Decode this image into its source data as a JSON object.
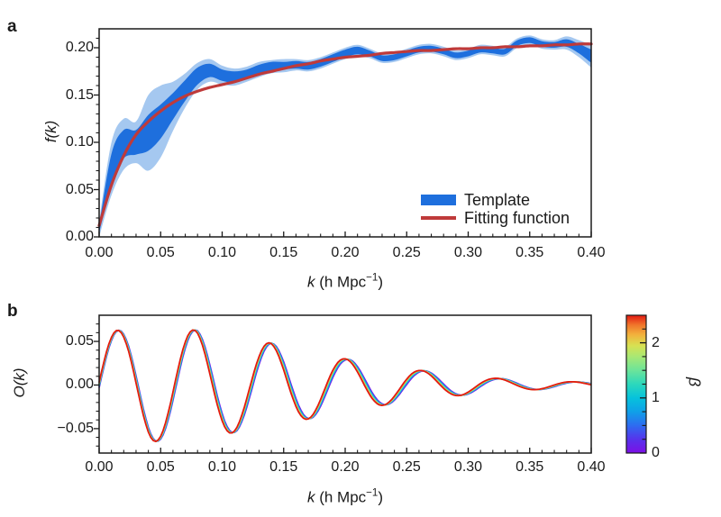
{
  "figure": {
    "panel_a_letter": "a",
    "panel_b_letter": "b",
    "background": "#ffffff",
    "text_color": "#1a1a1a",
    "axis_color": "#1a1a1a"
  },
  "chart_data": [
    {
      "id": "a",
      "type": "area",
      "title": "",
      "xlabel": {
        "var": "k",
        "unit_open": " (h Mpc",
        "exp": "−1",
        "unit_close": ")"
      },
      "ylabel": "f(k)",
      "xlim": [
        0,
        0.4
      ],
      "ylim": [
        0,
        0.22
      ],
      "x_tick_values": [
        0,
        0.05,
        0.1,
        0.15,
        0.2,
        0.25,
        0.3,
        0.35,
        0.4
      ],
      "x_tick_labels": [
        "0.00",
        "0.05",
        "0.10",
        "0.15",
        "0.20",
        "0.25",
        "0.30",
        "0.35",
        "0.40"
      ],
      "x_minor_step": 0.01,
      "y_tick_values": [
        0,
        0.05,
        0.1,
        0.15,
        0.2
      ],
      "y_tick_labels": [
        "0.00",
        "0.05",
        "0.10",
        "0.15",
        "0.20"
      ],
      "y_minor_step": 0.01,
      "legend_position": "lower right",
      "k_values": [
        0.0,
        0.01,
        0.02,
        0.03,
        0.04,
        0.05,
        0.06,
        0.07,
        0.08,
        0.09,
        0.1,
        0.11,
        0.12,
        0.13,
        0.14,
        0.15,
        0.16,
        0.17,
        0.18,
        0.19,
        0.2,
        0.21,
        0.22,
        0.23,
        0.24,
        0.25,
        0.26,
        0.27,
        0.28,
        0.29,
        0.3,
        0.31,
        0.32,
        0.33,
        0.34,
        0.35,
        0.36,
        0.37,
        0.38,
        0.39,
        0.4
      ],
      "series": [
        {
          "name": "Template",
          "style": "band",
          "color_inner": "#1e6fdd",
          "color_outer": "#a5c8f0",
          "center": [
            0.008,
            0.072,
            0.098,
            0.1,
            0.11,
            0.122,
            0.138,
            0.155,
            0.17,
            0.176,
            0.171,
            0.169,
            0.172,
            0.177,
            0.18,
            0.181,
            0.182,
            0.181,
            0.184,
            0.189,
            0.194,
            0.197,
            0.194,
            0.189,
            0.19,
            0.194,
            0.198,
            0.199,
            0.196,
            0.192,
            0.194,
            0.198,
            0.197,
            0.196,
            0.205,
            0.208,
            0.204,
            0.203,
            0.205,
            0.199,
            0.191
          ],
          "inner_halfwidth": [
            0.004,
            0.016,
            0.015,
            0.013,
            0.019,
            0.018,
            0.014,
            0.011,
            0.009,
            0.007,
            0.006,
            0.006,
            0.005,
            0.005,
            0.005,
            0.004,
            0.004,
            0.004,
            0.004,
            0.004,
            0.004,
            0.004,
            0.003,
            0.003,
            0.003,
            0.003,
            0.003,
            0.003,
            0.003,
            0.003,
            0.003,
            0.003,
            0.003,
            0.003,
            0.003,
            0.003,
            0.003,
            0.003,
            0.004,
            0.005,
            0.007
          ],
          "outer_halfwidth": [
            0.008,
            0.028,
            0.027,
            0.022,
            0.04,
            0.038,
            0.026,
            0.018,
            0.014,
            0.012,
            0.01,
            0.009,
            0.008,
            0.008,
            0.007,
            0.007,
            0.006,
            0.006,
            0.006,
            0.006,
            0.006,
            0.006,
            0.005,
            0.005,
            0.005,
            0.005,
            0.005,
            0.005,
            0.005,
            0.005,
            0.005,
            0.005,
            0.005,
            0.005,
            0.005,
            0.005,
            0.005,
            0.005,
            0.007,
            0.009,
            0.012
          ]
        },
        {
          "name": "Fitting function",
          "style": "line",
          "color": "#bf3a3a",
          "values": [
            0.012,
            0.055,
            0.086,
            0.108,
            0.122,
            0.133,
            0.142,
            0.149,
            0.154,
            0.158,
            0.161,
            0.164,
            0.168,
            0.172,
            0.175,
            0.178,
            0.181,
            0.183,
            0.186,
            0.188,
            0.19,
            0.191,
            0.192,
            0.194,
            0.195,
            0.196,
            0.197,
            0.197,
            0.198,
            0.199,
            0.199,
            0.2,
            0.2,
            0.201,
            0.201,
            0.202,
            0.202,
            0.203,
            0.203,
            0.204,
            0.204
          ]
        }
      ]
    },
    {
      "id": "b",
      "type": "line",
      "title": "",
      "xlabel": {
        "var": "k",
        "unit_open": " (h Mpc",
        "exp": "−1",
        "unit_close": ")"
      },
      "ylabel": "O(k)",
      "xlim": [
        0,
        0.4
      ],
      "ylim": [
        -0.078,
        0.08
      ],
      "x_tick_values": [
        0,
        0.05,
        0.1,
        0.15,
        0.2,
        0.25,
        0.3,
        0.35,
        0.4
      ],
      "x_tick_labels": [
        "0.00",
        "0.05",
        "0.10",
        "0.15",
        "0.20",
        "0.25",
        "0.30",
        "0.35",
        "0.40"
      ],
      "x_minor_step": 0.01,
      "y_tick_values": [
        -0.05,
        0,
        0.05
      ],
      "y_tick_labels": [
        "−0.05",
        "0.00",
        "0.05"
      ],
      "y_minor_step": 0.01,
      "oscillation": {
        "period": 0.062,
        "envelope_k": [
          0,
          0.02,
          0.04,
          0.06,
          0.08,
          0.1,
          0.12,
          0.14,
          0.16,
          0.18,
          0.2,
          0.22,
          0.24,
          0.26,
          0.28,
          0.3,
          0.32,
          0.34,
          0.36,
          0.38,
          0.4
        ],
        "envelope_amplitude": [
          0.062,
          0.063,
          0.065,
          0.064,
          0.063,
          0.057,
          0.052,
          0.048,
          0.042,
          0.036,
          0.03,
          0.026,
          0.021,
          0.017,
          0.014,
          0.011,
          0.008,
          0.006,
          0.005,
          0.004,
          0.003
        ],
        "beta_values": [
          0,
          0.5,
          1,
          1.5,
          2,
          2.25,
          2.5
        ],
        "beta_colors": [
          "#7d0fe6",
          "#2e6cf0",
          "#06c2dc",
          "#6ce49a",
          "#ddde50",
          "#f29238",
          "#e21912"
        ],
        "beta_shift_const": 0.0004,
        "beta_shift_slope": 0.0036,
        "beta_reference": 1.25
      },
      "colorbar": {
        "label": "β",
        "min": 0,
        "max": 2.5,
        "tick_values": [
          0,
          1,
          2
        ],
        "tick_labels": [
          "0",
          "1",
          "2"
        ],
        "minor_step": 0.25,
        "gradient_stops": [
          {
            "offset": 0.0,
            "color": "#7d0fe6"
          },
          {
            "offset": 0.1,
            "color": "#5633ec"
          },
          {
            "offset": 0.2,
            "color": "#2e6cf0"
          },
          {
            "offset": 0.3,
            "color": "#0fa0e8"
          },
          {
            "offset": 0.4,
            "color": "#06c2dc"
          },
          {
            "offset": 0.5,
            "color": "#2cd8bc"
          },
          {
            "offset": 0.6,
            "color": "#6ce49a"
          },
          {
            "offset": 0.7,
            "color": "#a8e874"
          },
          {
            "offset": 0.78,
            "color": "#d8e152"
          },
          {
            "offset": 0.86,
            "color": "#f2b13c"
          },
          {
            "offset": 0.93,
            "color": "#f0752b"
          },
          {
            "offset": 1.0,
            "color": "#e21912"
          }
        ]
      }
    }
  ]
}
